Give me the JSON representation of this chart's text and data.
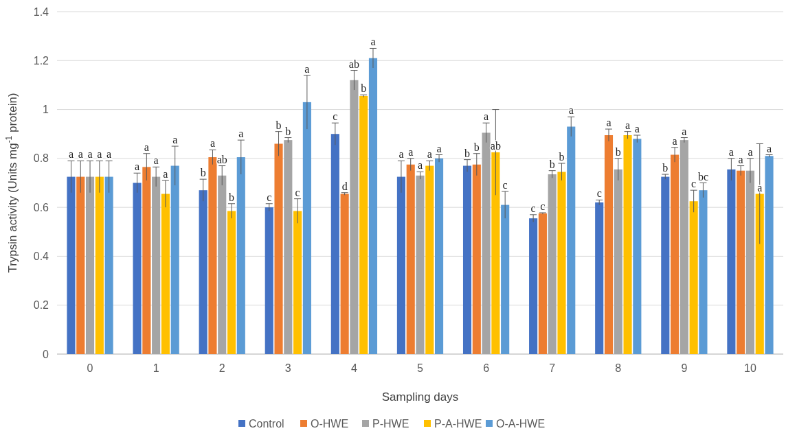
{
  "chart_data": {
    "type": "bar",
    "xlabel": "Sampling days",
    "ylabel": "Trypsin activity (Units mg$^{-1}$ protein)",
    "categories": [
      "0",
      "1",
      "2",
      "3",
      "4",
      "5",
      "6",
      "7",
      "8",
      "9",
      "10"
    ],
    "series": [
      {
        "name": "Control",
        "color": "#4472c4",
        "values": [
          0.725,
          0.7,
          0.67,
          0.6,
          0.9,
          0.725,
          0.77,
          0.555,
          0.62,
          0.725,
          0.755
        ],
        "errors": [
          0.065,
          0.04,
          0.045,
          0.015,
          0.045,
          0.065,
          0.025,
          0.015,
          0.01,
          0.01,
          0.045
        ],
        "value_labels": [
          "a",
          "a",
          "b",
          "c",
          "c",
          "a",
          "b",
          "c",
          "c",
          "b",
          "a"
        ]
      },
      {
        "name": "O-HWE",
        "color": "#ed7d31",
        "values": [
          0.725,
          0.765,
          0.805,
          0.86,
          0.655,
          0.775,
          0.775,
          0.575,
          0.895,
          0.815,
          0.75
        ],
        "errors": [
          0.065,
          0.055,
          0.03,
          0.05,
          0.005,
          0.025,
          0.045,
          0.003,
          0.025,
          0.03,
          0.02
        ],
        "value_labels": [
          "a",
          "a",
          "a",
          "b",
          "d",
          "a",
          "b",
          "c",
          "a",
          "a",
          "a"
        ]
      },
      {
        "name": "P-HWE",
        "color": "#a5a5a5",
        "values": [
          0.725,
          0.725,
          0.73,
          0.875,
          1.12,
          0.73,
          0.905,
          0.735,
          0.755,
          0.875,
          0.75
        ],
        "errors": [
          0.065,
          0.04,
          0.04,
          0.01,
          0.04,
          0.015,
          0.04,
          0.015,
          0.045,
          0.01,
          0.05
        ],
        "value_labels": [
          "a",
          "a",
          "ab",
          "b",
          "ab",
          "a",
          "a",
          "b",
          "b",
          "a",
          "a"
        ]
      },
      {
        "name": "P-A-HWE",
        "color": "#ffc000",
        "values": [
          0.725,
          0.655,
          0.585,
          0.585,
          1.055,
          0.77,
          0.825,
          0.745,
          0.895,
          0.625,
          0.655
        ],
        "errors": [
          0.065,
          0.055,
          0.03,
          0.05,
          0.005,
          0.02,
          0.175,
          0.035,
          0.015,
          0.045,
          0.205
        ],
        "value_labels": [
          "a",
          "a",
          "b",
          "c",
          "b",
          "a",
          "ab",
          "b",
          "a",
          "c",
          "a"
        ]
      },
      {
        "name": "O-A-HWE",
        "color": "#5b9bd5",
        "values": [
          0.725,
          0.77,
          0.805,
          1.03,
          1.21,
          0.8,
          0.61,
          0.93,
          0.88,
          0.67,
          0.81
        ],
        "errors": [
          0.065,
          0.08,
          0.07,
          0.11,
          0.04,
          0.015,
          0.055,
          0.04,
          0.015,
          0.03,
          0.005
        ],
        "value_labels": [
          "a",
          "a",
          "a",
          "a",
          "a",
          "a",
          "c",
          "a",
          "a",
          "bc",
          "a"
        ]
      }
    ],
    "ylim": [
      0,
      1.4
    ],
    "yticks": [
      0,
      0.2,
      0.4,
      0.6,
      0.8,
      1,
      1.2,
      1.4
    ],
    "grid": "y",
    "legend": "bottom"
  }
}
